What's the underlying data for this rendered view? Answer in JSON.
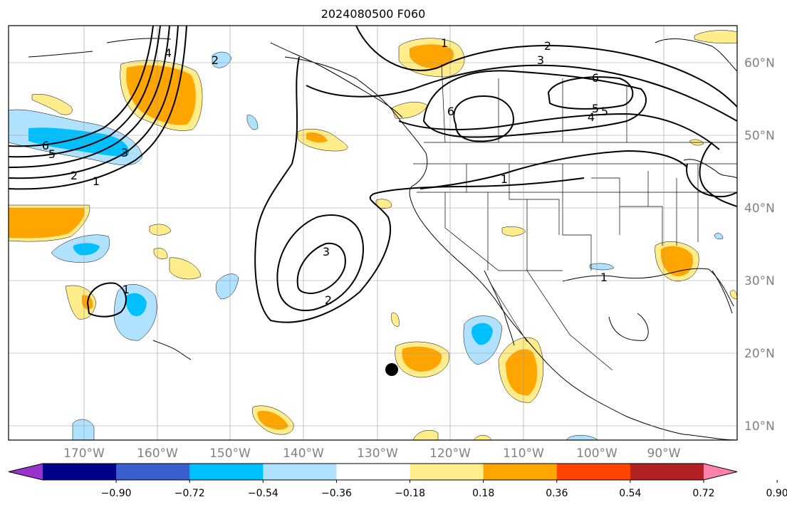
{
  "title": "2024080500 F060",
  "lon_labels": [
    "170°W",
    "160°W",
    "150°W",
    "140°W",
    "130°W",
    "120°W",
    "110°W",
    "100°W",
    "90°W"
  ],
  "lat_labels": [
    "60°N",
    "50°N",
    "40°N",
    "30°N",
    "20°N",
    "10°N"
  ],
  "colorbar": {
    "tick_labels": [
      "−0.90",
      "−0.72",
      "−0.54",
      "−0.36",
      "−0.18",
      "0.18",
      "0.36",
      "0.54",
      "0.72",
      "0.90"
    ],
    "colors": [
      "#9a32cd",
      "#00008b",
      "#3a5fcd",
      "#00bfff",
      "#b0e2ff",
      "#ffffff",
      "#ffec8b",
      "#ffa500",
      "#ff4500",
      "#b22222",
      "#ff82ab"
    ]
  },
  "contour_labels": [
    "6",
    "5",
    "3",
    "2",
    "1",
    "2",
    "3",
    "6",
    "6",
    "5",
    "4",
    "5",
    "1",
    "3",
    "2",
    "1",
    "1",
    "4",
    "2",
    "1"
  ]
}
